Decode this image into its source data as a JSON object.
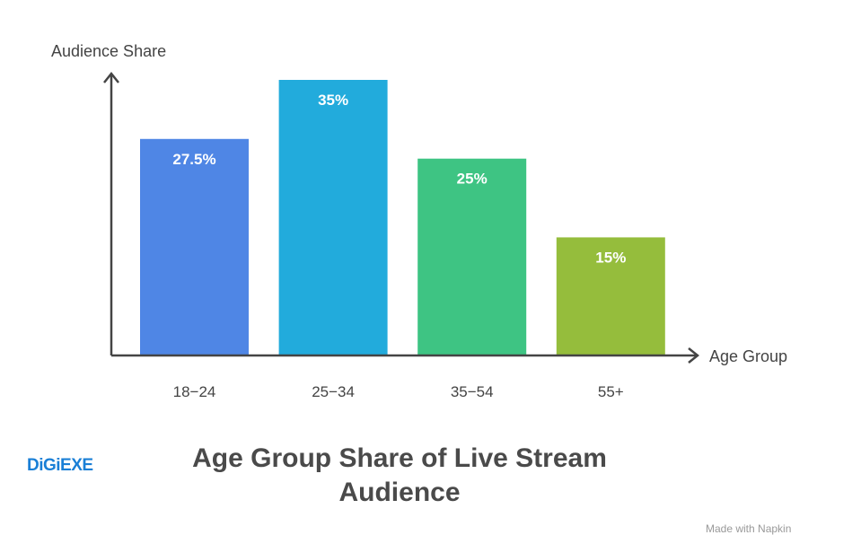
{
  "chart_data": {
    "type": "bar",
    "title": "Age Group Share of Live Stream Audience",
    "xlabel": "Age Group",
    "ylabel": "Audience Share",
    "categories": [
      "18−24",
      "25−34",
      "35−54",
      "55+"
    ],
    "values": [
      27.5,
      35,
      25,
      15
    ],
    "value_labels": [
      "27.5%",
      "35%",
      "25%",
      "15%"
    ],
    "colors": [
      "#4f86e5",
      "#22abdc",
      "#3ec483",
      "#95bd3c"
    ],
    "ylim": [
      0,
      35
    ],
    "grid": false
  },
  "logo": "DiGiEXE",
  "footer": "Made with Napkin"
}
